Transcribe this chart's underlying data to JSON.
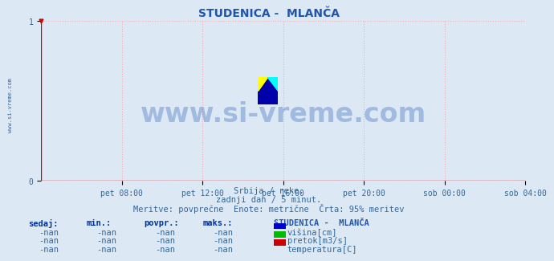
{
  "title": "STUDENICA -  MLANČA",
  "title_color": "#2255aa",
  "bg_color": "#dce9f5",
  "plot_bg_color": "#dce9f5",
  "grid_color": "#ffaaaa",
  "axis_color": "#cc0000",
  "tick_color": "#336699",
  "ylim": [
    0,
    1
  ],
  "yticks": [
    0,
    1
  ],
  "xlim": [
    0,
    288
  ],
  "xtick_positions": [
    48,
    96,
    144,
    192,
    240,
    288
  ],
  "xtick_labels": [
    "pet 08:00",
    "pet 12:00",
    "pet 16:00",
    "pet 20:00",
    "sob 00:00",
    "sob 04:00"
  ],
  "watermark_text": "www.si-vreme.com",
  "watermark_color": "#3366bb",
  "watermark_alpha": 0.35,
  "subtitle1": "Srbija / reke.",
  "subtitle2": "zadnji dan / 5 minut.",
  "subtitle3": "Meritve: povprečne  Enote: metrične  Črta: 95% meritev",
  "subtitle_color": "#336699",
  "sidebar_text": "www.si-vreme.com",
  "sidebar_color": "#336699",
  "legend_title": "STUDENICA -  MLANČA",
  "legend_items": [
    {
      "label": "višina[cm]",
      "color": "#0000cc"
    },
    {
      "label": "pretok[m3/s]",
      "color": "#00bb00"
    },
    {
      "label": "temperatura[C]",
      "color": "#cc0000"
    }
  ],
  "table_headers": [
    "sedaj:",
    "min.:",
    "povpr.:",
    "maks.:"
  ],
  "table_values": [
    "-nan",
    "-nan",
    "-nan",
    "-nan"
  ],
  "table_header_color": "#003399",
  "table_value_color": "#336699",
  "logo_colors": {
    "yellow": "#ffff00",
    "cyan": "#00ffff",
    "dark_blue": "#0000aa",
    "navy": "#000066"
  }
}
